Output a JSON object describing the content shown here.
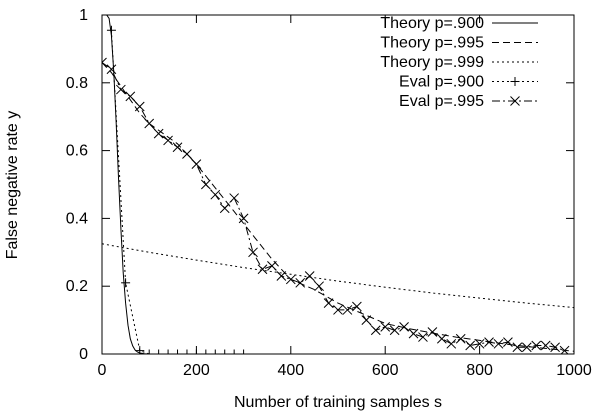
{
  "chart_data": {
    "type": "line",
    "xlabel": "Number of training samples s",
    "ylabel": "False negative rate y",
    "xlim": [
      0,
      1000
    ],
    "ylim": [
      0,
      1
    ],
    "x_ticks": [
      0,
      200,
      400,
      600,
      800,
      1000
    ],
    "x_tick_labels": [
      "0",
      "200",
      "400",
      "600",
      "800",
      "1000"
    ],
    "y_ticks": [
      0,
      0.2,
      0.4,
      0.6,
      0.8,
      1
    ],
    "y_tick_labels": [
      "0",
      "0.2",
      "0.4",
      "0.6",
      "0.8",
      "1"
    ],
    "grid": false,
    "legend_position": "top-right",
    "series": [
      {
        "name": "Theory p=.900",
        "style": "solid",
        "marker": "none",
        "x": [
          0,
          5,
          10,
          15,
          20,
          25,
          30,
          35,
          40,
          45,
          50,
          55,
          60,
          65,
          70,
          75,
          80,
          90,
          100,
          120,
          150,
          200,
          300,
          400,
          500,
          600,
          700,
          800,
          900,
          1000
        ],
        "y": [
          1,
          1,
          1,
          0.99,
          0.94,
          0.83,
          0.68,
          0.52,
          0.37,
          0.24,
          0.15,
          0.085,
          0.045,
          0.024,
          0.012,
          0.006,
          0.003,
          0.001,
          0.0004,
          0.0001,
          0,
          0,
          0,
          0,
          0,
          0,
          0,
          0,
          0,
          0
        ]
      },
      {
        "name": "Theory p=.995",
        "style": "dashed",
        "marker": "none",
        "x": [
          0,
          20,
          40,
          60,
          80,
          100,
          130,
          160,
          200,
          240,
          280,
          320,
          360,
          400,
          450,
          500,
          550,
          600,
          650,
          700,
          750,
          800,
          850,
          900,
          950,
          1000
        ],
        "y": [
          0.86,
          0.83,
          0.79,
          0.75,
          0.71,
          0.68,
          0.65,
          0.62,
          0.56,
          0.49,
          0.42,
          0.35,
          0.28,
          0.22,
          0.19,
          0.15,
          0.12,
          0.09,
          0.075,
          0.062,
          0.05,
          0.04,
          0.03,
          0.022,
          0.015,
          0.008
        ]
      },
      {
        "name": "Theory p=.999",
        "style": "dotted",
        "marker": "none",
        "x": [
          0,
          100,
          200,
          300,
          400,
          500,
          600,
          700,
          800,
          900,
          1000
        ],
        "y": [
          0.325,
          0.3,
          0.277,
          0.255,
          0.235,
          0.215,
          0.197,
          0.18,
          0.165,
          0.15,
          0.137
        ]
      },
      {
        "name": "Eval p=.900",
        "style": "dotted",
        "marker": "plus",
        "x": [
          20,
          50,
          80,
          100,
          120,
          140,
          160,
          180,
          200,
          220,
          240,
          260,
          280,
          300
        ],
        "y": [
          0.955,
          0.21,
          0.01,
          0,
          0,
          0,
          0,
          0,
          0,
          0,
          0,
          0,
          0,
          0
        ]
      },
      {
        "name": "Eval p=.995",
        "style": "dashdot",
        "marker": "x",
        "x": [
          0,
          20,
          40,
          60,
          80,
          100,
          120,
          140,
          160,
          180,
          200,
          220,
          240,
          260,
          280,
          300,
          320,
          340,
          360,
          380,
          400,
          420,
          440,
          460,
          480,
          500,
          520,
          540,
          560,
          580,
          600,
          620,
          640,
          660,
          680,
          700,
          720,
          740,
          760,
          780,
          800,
          820,
          840,
          860,
          880,
          900,
          920,
          940,
          960,
          980
        ],
        "y": [
          0.86,
          0.84,
          0.78,
          0.76,
          0.73,
          0.68,
          0.65,
          0.63,
          0.61,
          0.59,
          0.56,
          0.5,
          0.47,
          0.43,
          0.46,
          0.4,
          0.3,
          0.25,
          0.26,
          0.23,
          0.22,
          0.21,
          0.23,
          0.2,
          0.15,
          0.13,
          0.13,
          0.14,
          0.1,
          0.07,
          0.08,
          0.07,
          0.08,
          0.06,
          0.05,
          0.065,
          0.045,
          0.03,
          0.045,
          0.025,
          0.03,
          0.035,
          0.03,
          0.035,
          0.02,
          0.02,
          0.025,
          0.025,
          0.02,
          0.01
        ]
      }
    ]
  }
}
